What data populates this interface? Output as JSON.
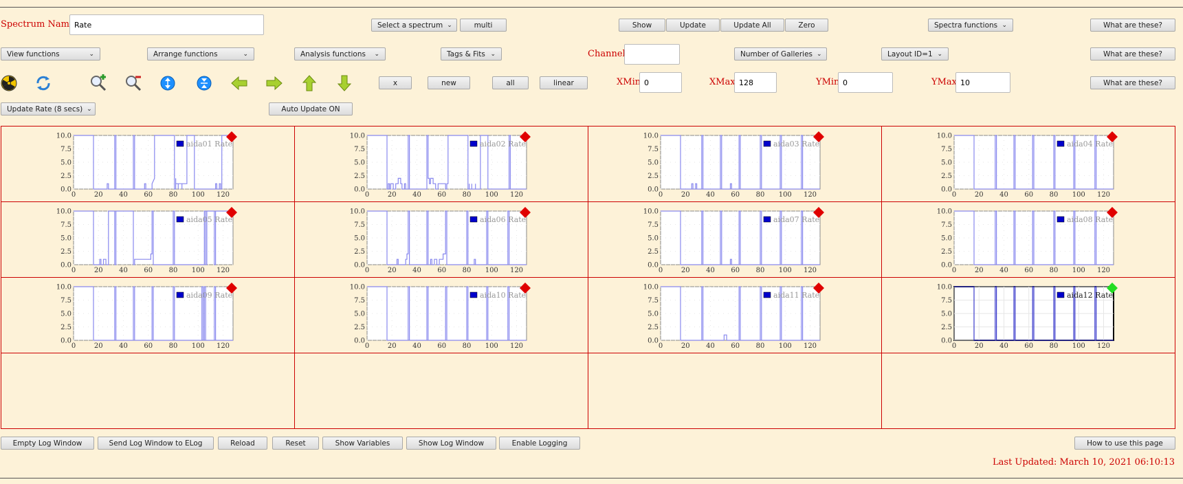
{
  "header": {
    "spectrum_name_label": "Spectrum Name:",
    "spectrum_name_value": "Rate",
    "select_spectrum": "Select a spectrum",
    "multi": "multi",
    "show": "Show",
    "update": "Update",
    "update_all": "Update All",
    "zero": "Zero",
    "spectra_functions": "Spectra functions",
    "what_1": "What are these?"
  },
  "row2": {
    "view_functions": "View functions",
    "arrange_functions": "Arrange functions",
    "analysis_functions": "Analysis functions",
    "tags_fits": "Tags & Fits",
    "channel_label": "Channel:",
    "channel_value": "",
    "galleries": "Number of Galleries",
    "layout": "Layout ID=1",
    "what_2": "What are these?"
  },
  "row3": {
    "x": "x",
    "new": "new",
    "all": "all",
    "linear": "linear",
    "xmin_label": "XMin",
    "xmin_value": "0",
    "xmax_label": "XMax",
    "xmax_value": "128",
    "ymin_label": "YMin",
    "ymin_value": "0",
    "ymax_label": "YMax",
    "ymax_value": "10",
    "what_3": "What are these?"
  },
  "row4": {
    "update_rate": "Update Rate (8 secs)",
    "auto_update": "Auto Update ON"
  },
  "icons": [
    "radiation-icon",
    "refresh-icon",
    "zoom-in-icon",
    "zoom-out-icon",
    "expand-y-icon",
    "compress-y-icon",
    "arrow-left-icon",
    "arrow-right-icon",
    "arrow-up-icon",
    "arrow-down-icon"
  ],
  "colors": {
    "marker_red": "#e00000",
    "marker_green": "#22dd22",
    "trace": "#8888ee",
    "legend_box": "#0000cc",
    "grid_border": "#cc0000",
    "label_red": "#cc0000"
  },
  "chart_data": [
    {
      "type": "line",
      "legend": "aida01 Rate",
      "marker": "red",
      "xlim": [
        0,
        128
      ],
      "ylim": [
        0,
        10
      ],
      "xticks": [
        "0",
        "20",
        "40",
        "60",
        "80",
        "100",
        "120"
      ],
      "yticks": [
        "0.0",
        "2.5",
        "5.0",
        "7.5",
        "10.0"
      ],
      "x": [
        0,
        16,
        16,
        17,
        17,
        27,
        27,
        28,
        28,
        33,
        33,
        34,
        34,
        48,
        48,
        49,
        49,
        57,
        57,
        58,
        58,
        63,
        63,
        65,
        65,
        81,
        81,
        82,
        82,
        82,
        84,
        84,
        84,
        87,
        87,
        87,
        91,
        91,
        97,
        97,
        114,
        114,
        115,
        115,
        117,
        117,
        118,
        118,
        119,
        119,
        129
      ],
      "y": [
        10,
        10,
        0,
        0,
        0,
        0,
        1,
        1,
        0,
        0,
        10,
        10,
        0,
        0,
        10,
        10,
        0,
        0,
        1,
        1,
        0,
        0,
        1,
        2,
        10,
        10,
        0,
        0,
        2,
        1,
        1,
        0,
        1,
        1,
        0,
        1,
        1,
        10,
        10,
        0,
        0,
        1,
        1,
        0,
        0,
        1,
        1,
        0,
        0,
        10,
        10
      ]
    },
    {
      "type": "line",
      "legend": "aida02 Rate",
      "marker": "red",
      "xlim": [
        0,
        128
      ],
      "ylim": [
        0,
        10
      ],
      "xticks": [
        "0",
        "20",
        "40",
        "60",
        "80",
        "100",
        "120"
      ],
      "yticks": [
        "0.0",
        "2.5",
        "5.0",
        "7.5",
        "10.0"
      ],
      "x": [
        0,
        16,
        16,
        17,
        17,
        18,
        18,
        19,
        19,
        21,
        21,
        23,
        23,
        25,
        25,
        27,
        27,
        28,
        28,
        30,
        30,
        31,
        31,
        33,
        33,
        34,
        34,
        48,
        48,
        49,
        49,
        50,
        50,
        51,
        51,
        53,
        53,
        55,
        55,
        57,
        57,
        63,
        63,
        64,
        64,
        65,
        65,
        81,
        81,
        82,
        82,
        82,
        84,
        84,
        84,
        87,
        87,
        87,
        91,
        91,
        97,
        97,
        114,
        114,
        115,
        115,
        129
      ],
      "y": [
        10,
        10,
        0,
        0,
        1,
        1,
        0,
        0,
        1,
        1,
        0,
        0,
        1,
        1,
        2,
        2,
        1,
        1,
        0,
        0,
        1,
        1,
        0,
        0,
        10,
        10,
        0,
        0,
        10,
        10,
        2,
        2,
        1,
        1,
        2,
        2,
        1,
        1,
        0,
        0,
        1,
        1,
        0,
        0,
        1,
        1,
        10,
        10,
        0,
        0,
        1,
        0,
        0,
        1,
        0,
        0,
        1,
        0,
        0,
        10,
        10,
        0,
        0,
        10,
        10,
        0,
        0
      ]
    },
    {
      "type": "line",
      "legend": "aida03 Rate",
      "marker": "red",
      "xlim": [
        0,
        128
      ],
      "ylim": [
        0,
        10
      ],
      "xticks": [
        "0",
        "20",
        "40",
        "60",
        "80",
        "100",
        "120"
      ],
      "yticks": [
        "0.0",
        "2.5",
        "5.0",
        "7.5",
        "10.0"
      ],
      "x": [
        0,
        16,
        16,
        17,
        17,
        25,
        25,
        26,
        26,
        28,
        28,
        29,
        29,
        33,
        33,
        34,
        34,
        48,
        48,
        49,
        49,
        56,
        56,
        57,
        57,
        63,
        63,
        64,
        64,
        80,
        80,
        81,
        81,
        96,
        96,
        97,
        97,
        113,
        113,
        114,
        114,
        129
      ],
      "y": [
        10,
        10,
        0,
        0,
        0,
        0,
        1,
        1,
        0,
        0,
        1,
        1,
        0,
        0,
        10,
        10,
        0,
        0,
        10,
        10,
        0,
        0,
        1,
        1,
        0,
        0,
        10,
        10,
        0,
        0,
        10,
        10,
        0,
        0,
        10,
        10,
        0,
        0,
        10,
        10,
        0,
        0
      ]
    },
    {
      "type": "line",
      "legend": "aida04 Rate",
      "marker": "red",
      "xlim": [
        0,
        128
      ],
      "ylim": [
        0,
        10
      ],
      "xticks": [
        "0",
        "20",
        "40",
        "60",
        "80",
        "100",
        "120"
      ],
      "yticks": [
        "0.0",
        "2.5",
        "5.0",
        "7.5",
        "10.0"
      ],
      "x": [
        0,
        16,
        16,
        17,
        17,
        33,
        33,
        34,
        34,
        48,
        48,
        49,
        49,
        63,
        63,
        64,
        64,
        80,
        80,
        81,
        81,
        96,
        96,
        97,
        97,
        113,
        113,
        114,
        114,
        129
      ],
      "y": [
        10,
        10,
        0,
        0,
        0,
        0,
        10,
        10,
        0,
        0,
        10,
        10,
        0,
        0,
        10,
        10,
        0,
        0,
        10,
        10,
        0,
        0,
        10,
        10,
        0,
        0,
        10,
        10,
        0,
        0
      ]
    },
    {
      "type": "line",
      "legend": "aida05 Rate",
      "marker": "red",
      "xlim": [
        0,
        128
      ],
      "ylim": [
        0,
        10
      ],
      "xticks": [
        "0",
        "20",
        "40",
        "60",
        "80",
        "100",
        "120"
      ],
      "yticks": [
        "0.0",
        "2.5",
        "5.0",
        "7.5",
        "10.0"
      ],
      "x": [
        0,
        16,
        16,
        17,
        17,
        21,
        21,
        22,
        22,
        24,
        24,
        26,
        26,
        28,
        28,
        33,
        33,
        34,
        34,
        48,
        48,
        49,
        49,
        62,
        62,
        63,
        63,
        64,
        64,
        80,
        80,
        81,
        81,
        105,
        105,
        106,
        106,
        107,
        107,
        113,
        113,
        114,
        114,
        129
      ],
      "y": [
        10,
        10,
        0,
        0,
        0,
        0,
        1,
        1,
        0,
        0,
        1,
        1,
        0,
        0,
        10,
        10,
        0,
        0,
        10,
        10,
        0,
        0,
        1,
        1,
        2,
        2,
        10,
        10,
        0,
        0,
        10,
        10,
        0,
        0,
        10,
        10,
        0,
        0,
        10,
        10,
        0,
        0,
        10,
        10
      ]
    },
    {
      "type": "line",
      "legend": "aida06 Rate",
      "marker": "red",
      "xlim": [
        0,
        128
      ],
      "ylim": [
        0,
        10
      ],
      "xticks": [
        "0",
        "20",
        "40",
        "60",
        "80",
        "100",
        "120"
      ],
      "yticks": [
        "0.0",
        "2.5",
        "5.0",
        "7.5",
        "10.0"
      ],
      "x": [
        0,
        16,
        16,
        17,
        17,
        24,
        24,
        25,
        25,
        31,
        31,
        32,
        32,
        33,
        33,
        34,
        34,
        48,
        48,
        49,
        49,
        51,
        51,
        52,
        52,
        54,
        54,
        56,
        56,
        58,
        58,
        61,
        61,
        63,
        63,
        64,
        64,
        80,
        80,
        81,
        81,
        86,
        86,
        87,
        87,
        96,
        96,
        97,
        97,
        113,
        113,
        114,
        114,
        129
      ],
      "y": [
        10,
        10,
        0,
        0,
        0,
        0,
        1,
        1,
        0,
        0,
        1,
        1,
        2,
        2,
        10,
        10,
        0,
        0,
        10,
        10,
        0,
        0,
        1,
        1,
        0,
        0,
        1,
        1,
        0,
        0,
        1,
        1,
        2,
        2,
        10,
        10,
        0,
        0,
        10,
        10,
        0,
        0,
        1,
        1,
        0,
        0,
        10,
        10,
        0,
        0,
        10,
        10,
        0,
        0
      ]
    },
    {
      "type": "line",
      "legend": "aida07 Rate",
      "marker": "red",
      "xlim": [
        0,
        128
      ],
      "ylim": [
        0,
        10
      ],
      "xticks": [
        "0",
        "20",
        "40",
        "60",
        "80",
        "100",
        "120"
      ],
      "yticks": [
        "0.0",
        "2.5",
        "5.0",
        "7.5",
        "10.0"
      ],
      "x": [
        0,
        16,
        16,
        17,
        17,
        33,
        33,
        34,
        34,
        48,
        48,
        49,
        49,
        56,
        56,
        57,
        57,
        63,
        63,
        64,
        64,
        80,
        80,
        81,
        81,
        96,
        96,
        97,
        97,
        113,
        113,
        114,
        114,
        129
      ],
      "y": [
        10,
        10,
        0,
        0,
        0,
        0,
        10,
        10,
        0,
        0,
        10,
        10,
        0,
        0,
        1,
        1,
        0,
        0,
        10,
        10,
        0,
        0,
        10,
        10,
        0,
        0,
        10,
        10,
        0,
        0,
        10,
        10,
        0,
        0
      ]
    },
    {
      "type": "line",
      "legend": "aida08 Rate",
      "marker": "red",
      "xlim": [
        0,
        128
      ],
      "ylim": [
        0,
        10
      ],
      "xticks": [
        "0",
        "20",
        "40",
        "60",
        "80",
        "100",
        "120"
      ],
      "yticks": [
        "0.0",
        "2.5",
        "5.0",
        "7.5",
        "10.0"
      ],
      "x": [
        0,
        16,
        16,
        17,
        17,
        33,
        33,
        34,
        34,
        48,
        48,
        49,
        49,
        63,
        63,
        64,
        64,
        80,
        80,
        81,
        81,
        96,
        96,
        97,
        97,
        113,
        113,
        114,
        114,
        129
      ],
      "y": [
        10,
        10,
        0,
        0,
        0,
        0,
        10,
        10,
        0,
        0,
        10,
        10,
        0,
        0,
        10,
        10,
        0,
        0,
        10,
        10,
        0,
        0,
        10,
        10,
        0,
        0,
        10,
        10,
        0,
        0
      ]
    },
    {
      "type": "line",
      "legend": "aida09 Rate",
      "marker": "red",
      "xlim": [
        0,
        128
      ],
      "ylim": [
        0,
        10
      ],
      "xticks": [
        "0",
        "20",
        "40",
        "60",
        "80",
        "100",
        "120"
      ],
      "yticks": [
        "0.0",
        "2.5",
        "5.0",
        "7.5",
        "10.0"
      ],
      "x": [
        0,
        16,
        16,
        17,
        17,
        33,
        33,
        34,
        34,
        48,
        48,
        49,
        49,
        63,
        63,
        64,
        64,
        80,
        80,
        81,
        81,
        103,
        103,
        104,
        104,
        105,
        105,
        106,
        106,
        113,
        113,
        114,
        114,
        129
      ],
      "y": [
        10,
        10,
        0,
        0,
        0,
        0,
        10,
        10,
        0,
        0,
        10,
        10,
        0,
        0,
        10,
        10,
        0,
        0,
        10,
        10,
        0,
        0,
        10,
        10,
        0,
        0,
        10,
        10,
        0,
        0,
        10,
        10,
        0,
        0
      ]
    },
    {
      "type": "line",
      "legend": "aida10 Rate",
      "marker": "red",
      "xlim": [
        0,
        128
      ],
      "ylim": [
        0,
        10
      ],
      "xticks": [
        "0",
        "20",
        "40",
        "60",
        "80",
        "100",
        "120"
      ],
      "yticks": [
        "0.0",
        "2.5",
        "5.0",
        "7.5",
        "10.0"
      ],
      "x": [
        0,
        16,
        16,
        17,
        17,
        33,
        33,
        34,
        34,
        48,
        48,
        49,
        49,
        63,
        63,
        64,
        64,
        80,
        80,
        81,
        81,
        96,
        96,
        97,
        97,
        113,
        113,
        114,
        114,
        129
      ],
      "y": [
        10,
        10,
        0,
        0,
        0,
        0,
        10,
        10,
        0,
        0,
        10,
        10,
        0,
        0,
        10,
        10,
        0,
        0,
        10,
        10,
        0,
        0,
        10,
        10,
        0,
        0,
        10,
        10,
        0,
        0
      ]
    },
    {
      "type": "line",
      "legend": "aida11 Rate",
      "marker": "red",
      "xlim": [
        0,
        128
      ],
      "ylim": [
        0,
        10
      ],
      "xticks": [
        "0",
        "20",
        "40",
        "60",
        "80",
        "100",
        "120"
      ],
      "yticks": [
        "0.0",
        "2.5",
        "5.0",
        "7.5",
        "10.0"
      ],
      "x": [
        0,
        16,
        16,
        17,
        17,
        33,
        33,
        34,
        34,
        48,
        48,
        51,
        51,
        53,
        53,
        63,
        63,
        64,
        64,
        80,
        80,
        81,
        81,
        96,
        96,
        97,
        97,
        113,
        113,
        114,
        114,
        129
      ],
      "y": [
        10,
        10,
        0,
        0,
        0,
        0,
        10,
        10,
        0,
        0,
        0,
        0,
        1,
        1,
        0,
        0,
        10,
        10,
        0,
        0,
        10,
        10,
        0,
        0,
        10,
        10,
        0,
        0,
        10,
        10,
        0,
        0
      ]
    },
    {
      "type": "line",
      "legend": "aida12 Rate",
      "marker": "green",
      "selected": true,
      "xlim": [
        0,
        128
      ],
      "ylim": [
        0,
        10
      ],
      "xticks": [
        "0",
        "20",
        "40",
        "60",
        "80",
        "100",
        "120"
      ],
      "yticks": [
        "0.0",
        "2.5",
        "5.0",
        "7.5",
        "10.0"
      ],
      "x": [
        0,
        16,
        16,
        17,
        17,
        33,
        33,
        34,
        34,
        48,
        48,
        49,
        49,
        63,
        63,
        64,
        64,
        80,
        80,
        81,
        81,
        96,
        96,
        97,
        97,
        113,
        113,
        114,
        114,
        129
      ],
      "y": [
        10,
        10,
        0,
        0,
        0,
        0,
        10,
        10,
        0,
        0,
        10,
        10,
        0,
        0,
        10,
        10,
        0,
        0,
        10,
        10,
        0,
        0,
        10,
        10,
        0,
        0,
        10,
        10,
        0,
        0
      ]
    }
  ],
  "footer": {
    "empty_log": "Empty Log Window",
    "send_log": "Send Log Window to ELog",
    "reload": "Reload",
    "reset": "Reset",
    "show_variables": "Show Variables",
    "show_log": "Show Log Window",
    "enable_logging": "Enable Logging",
    "how_to": "How to use this page",
    "last_updated": "Last Updated: March 10, 2021 06:10:13"
  }
}
